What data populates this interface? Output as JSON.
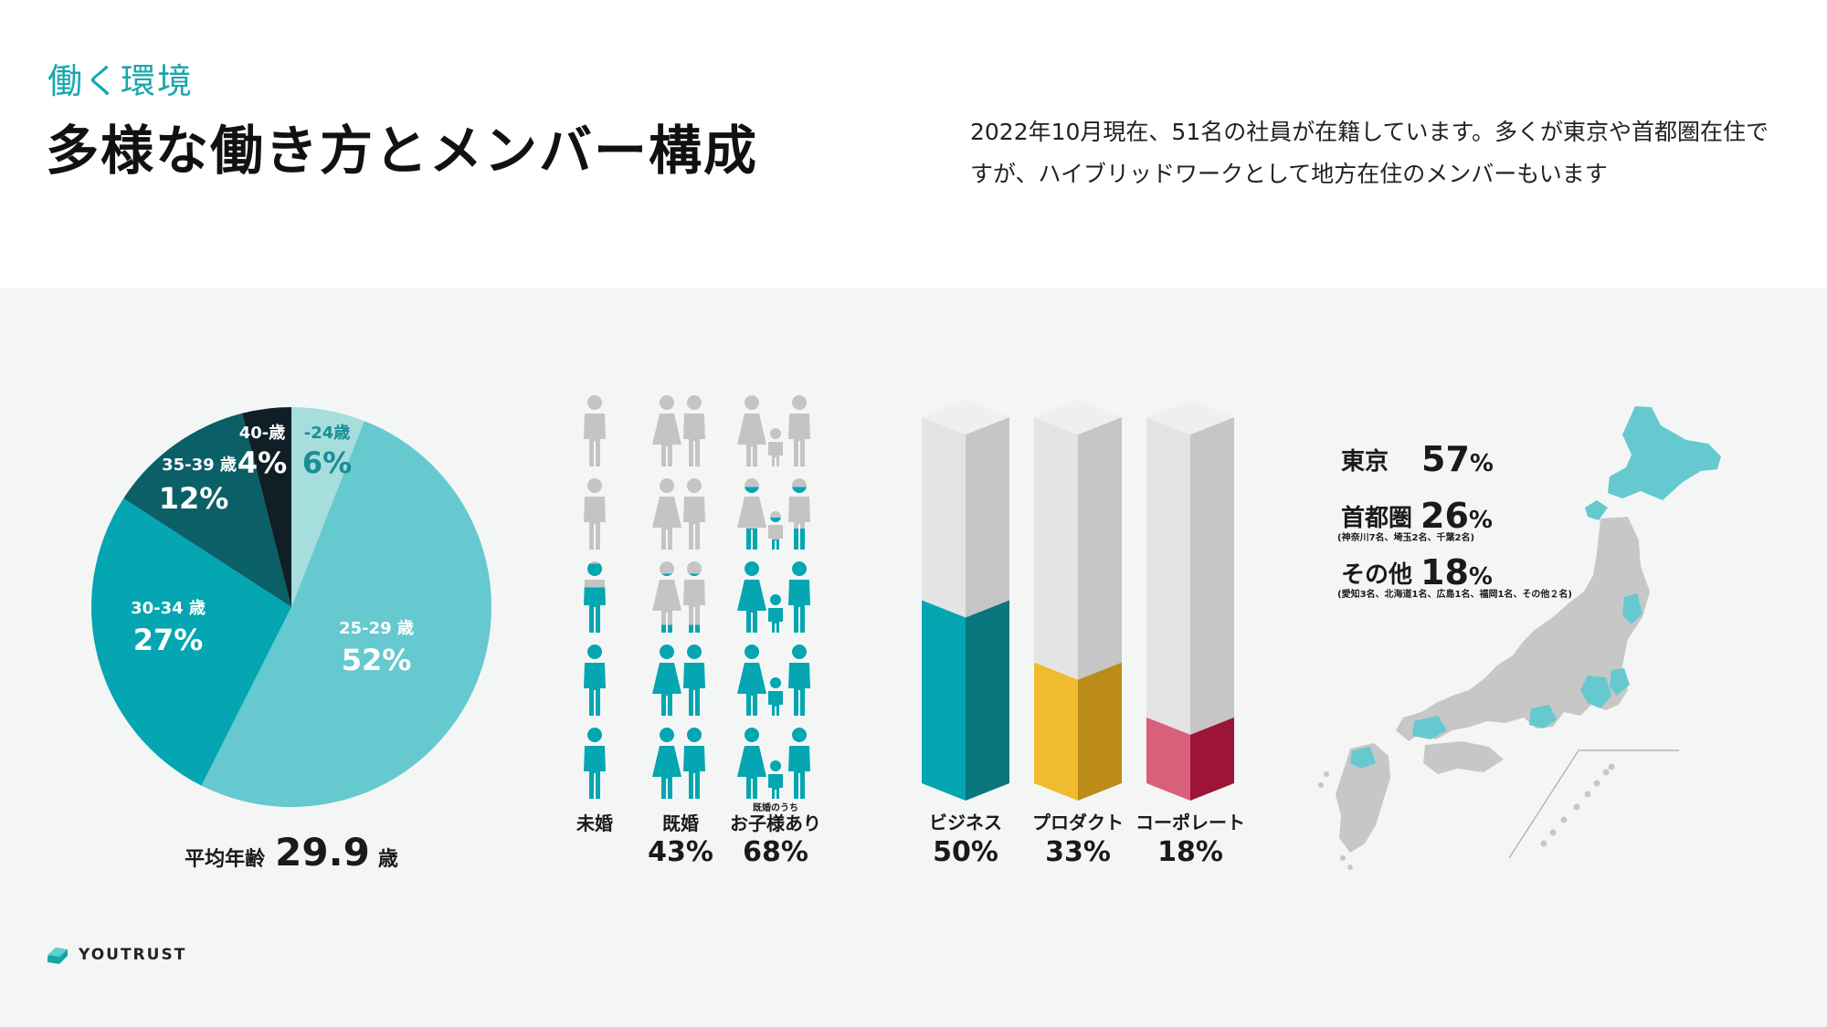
{
  "header": {
    "eyebrow": "働く環境",
    "title": "多様な働き方とメンバー構成",
    "desc_line1": "2022年10月現在、51名の社員が在籍しています。多くが東京や首都圏在住で",
    "desc_line2": "すが、ハイブリッドワークとして地方在住のメンバーもいます"
  },
  "age": {
    "avg_prefix": "平均年齢",
    "avg_value": "29.9",
    "avg_suffix": "歳"
  },
  "marriage": {
    "columns": [
      {
        "label": "未婚",
        "pct": "",
        "note": ""
      },
      {
        "label": "既婚",
        "pct": "43",
        "note": ""
      },
      {
        "label": "お子様あり",
        "pct": "68",
        "note": "既婚のうち"
      }
    ],
    "percent_sign": "%"
  },
  "departments": {
    "percent_sign": "%"
  },
  "location": {
    "rows": [
      {
        "label": "東京",
        "pct": "57",
        "note": ""
      },
      {
        "label": "首都圏",
        "pct": "26",
        "note": "(神奈川7名、埼玉2名、千葉2名)"
      },
      {
        "label": "その他",
        "pct": "18",
        "note": "(愛知3名、北海道1名、広島1名、福岡1名、その他２名)"
      }
    ],
    "percent_sign": "%"
  },
  "logo": {
    "name": "YOUTRUST"
  },
  "colors": {
    "teal_dark": "#0f1f25",
    "teal_darker": "#0b5f66",
    "teal_mid": "#03a6b1",
    "teal_light": "#66c9cf",
    "teal_pale": "#a6dedd",
    "yellow": "#f1bb2f",
    "pink": "#d9607a",
    "grey": "#c4c4c4"
  },
  "chart_data": [
    {
      "type": "pie",
      "categories": [
        "-24歳",
        "25-29 歳",
        "30-34 歳",
        "35-39 歳",
        "40-歳"
      ],
      "values": [
        6,
        52,
        27,
        12,
        4
      ],
      "label_texts": [
        "6%",
        "52%",
        "27%",
        "12%",
        "4%"
      ]
    },
    {
      "type": "bar",
      "categories": [
        "未婚",
        "既婚",
        "お子様あり"
      ],
      "values": [
        57,
        43,
        68
      ],
      "unit": "%",
      "icons_per_column": 5
    },
    {
      "type": "bar",
      "categories": [
        "ビジネス",
        "プロダクト",
        "コーポレート"
      ],
      "values": [
        50,
        33,
        18
      ],
      "ylim": [
        0,
        100
      ],
      "colors": [
        "#03a6b1",
        "#f1bb2f",
        "#d9607a"
      ]
    },
    {
      "type": "table",
      "categories": [
        "東京",
        "首都圏",
        "その他"
      ],
      "values": [
        57,
        26,
        18
      ]
    }
  ]
}
